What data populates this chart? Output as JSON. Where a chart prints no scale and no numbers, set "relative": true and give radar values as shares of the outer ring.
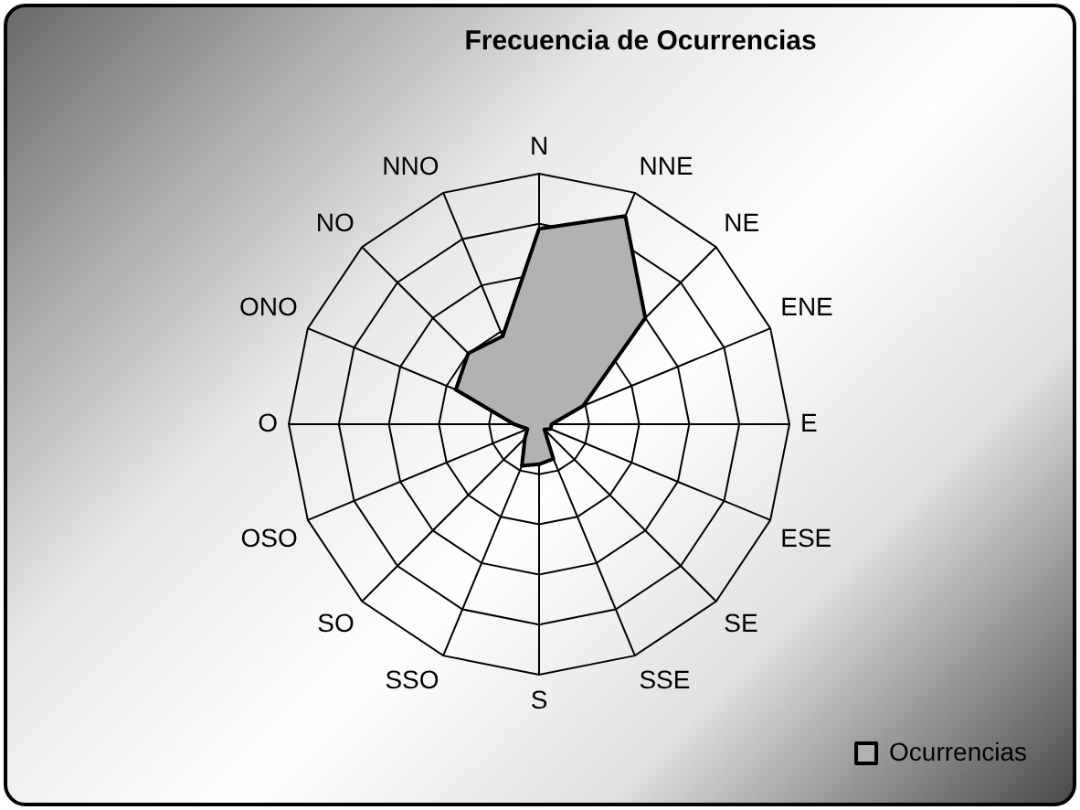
{
  "chart_data": {
    "type": "radar",
    "title": "Frecuencia de Ocurrencias",
    "relative": true,
    "categories": [
      "N",
      "NNE",
      "NE",
      "ENE",
      "E",
      "ESE",
      "SE",
      "SSE",
      "S",
      "SSO",
      "SO",
      "OSO",
      "O",
      "ONO",
      "NO",
      "NNO"
    ],
    "series": [
      {
        "name": "Ocurrencias",
        "color": "#b2b2b2",
        "values": [
          0.78,
          0.9,
          0.6,
          0.19,
          0.05,
          0.05,
          0.03,
          0.15,
          0.16,
          0.18,
          0.08,
          0.05,
          0.1,
          0.36,
          0.4,
          0.38
        ]
      }
    ],
    "legend": "bottom right",
    "marker": "none",
    "grid": true
  }
}
